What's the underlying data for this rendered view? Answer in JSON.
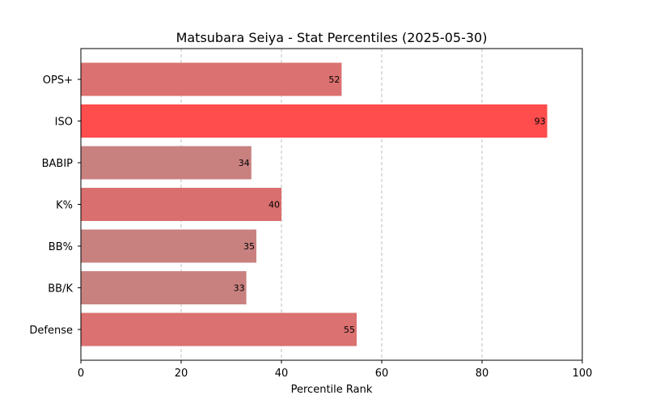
{
  "chart_data": {
    "type": "bar",
    "orientation": "horizontal",
    "title": "Matsubara Seiya - Stat Percentiles (2025-05-30)",
    "xlabel": "Percentile Rank",
    "ylabel": "",
    "xlim": [
      0,
      100
    ],
    "xticks": [
      "0",
      "20",
      "40",
      "60",
      "80",
      "100"
    ],
    "grid": "vertical dashed",
    "categories": [
      "OPS+",
      "ISO",
      "BABIP",
      "K%",
      "BB%",
      "BB/K",
      "Defense"
    ],
    "values": [
      52,
      93,
      34,
      40,
      35,
      33,
      55
    ],
    "data_labels": [
      "52",
      "93",
      "34",
      "40",
      "35",
      "33",
      "55"
    ],
    "colors": [
      "#db7170",
      "#ff4d4d",
      "#c98180",
      "#d96f6e",
      "#c98180",
      "#c98180",
      "#db7170"
    ]
  }
}
